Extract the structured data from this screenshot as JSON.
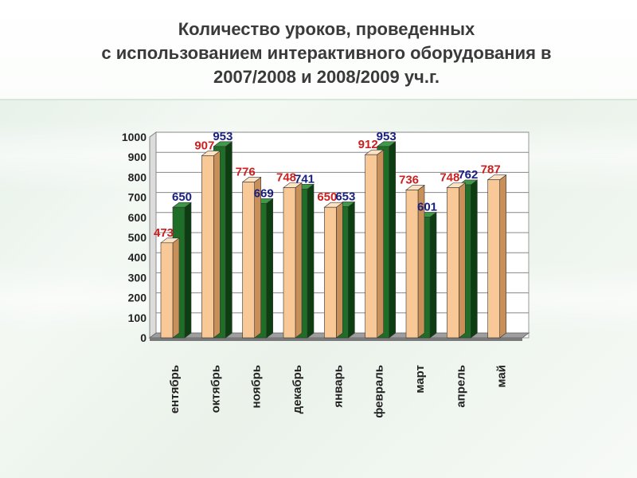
{
  "slide": {
    "title_lines": [
      "Количество уроков, проведенных",
      "с использованием интерактивного оборудования в",
      "2007/2008 и 2008/2009 уч.г."
    ]
  },
  "colors": {
    "series1_front": "#f8c896",
    "series1_side": "#c89058",
    "series1_top": "#fde2c4",
    "series1_label": "#cc2020",
    "series2_front": "#1f6e28",
    "series2_side": "#0c3e12",
    "series2_top": "#3f9a48",
    "series2_label": "#1a2080"
  },
  "chart_data": {
    "type": "bar",
    "title": "",
    "xlabel": "",
    "ylabel": "",
    "ylim": [
      0,
      1000
    ],
    "yticks": [
      0,
      100,
      200,
      300,
      400,
      500,
      600,
      700,
      800,
      900,
      1000
    ],
    "categories": [
      "ентябрь",
      "октябрь",
      "ноябрь",
      "декабрь",
      "январь",
      "февраль",
      "март",
      "апрель",
      "май"
    ],
    "series": [
      {
        "values": [
          473,
          907,
          776,
          748,
          650,
          912,
          736,
          748,
          787
        ]
      },
      {
        "values": [
          650,
          953,
          669,
          741,
          653,
          953,
          601,
          762,
          null
        ]
      }
    ],
    "grid": true,
    "legend": "none"
  }
}
